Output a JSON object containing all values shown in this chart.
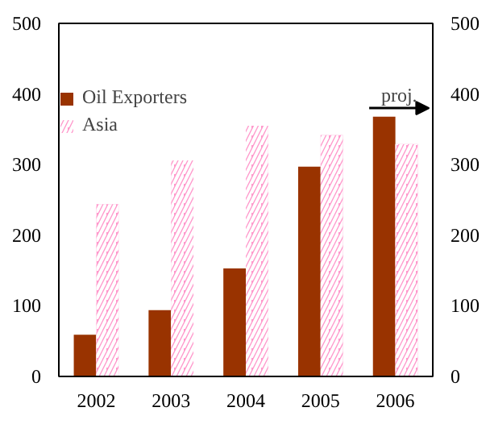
{
  "chart_data": {
    "type": "bar",
    "categories": [
      "2002",
      "2003",
      "2004",
      "2005",
      "2006"
    ],
    "series": [
      {
        "name": "Oil Exporters",
        "color": "#993300",
        "values": [
          59,
          94,
          153,
          297,
          368
        ]
      },
      {
        "name": "Asia",
        "color": "#ff99cc",
        "values": [
          244,
          306,
          355,
          342,
          329
        ]
      }
    ],
    "ylim": [
      0,
      500
    ],
    "yticks": [
      0,
      100,
      200,
      300,
      400,
      500
    ],
    "y2lim": [
      0,
      500
    ],
    "y2ticks": [
      0,
      100,
      200,
      300,
      400,
      500
    ],
    "annotations": [
      {
        "text": "proj.",
        "x": "2006",
        "y": 368
      }
    ],
    "legend": "top left",
    "grid": false
  }
}
